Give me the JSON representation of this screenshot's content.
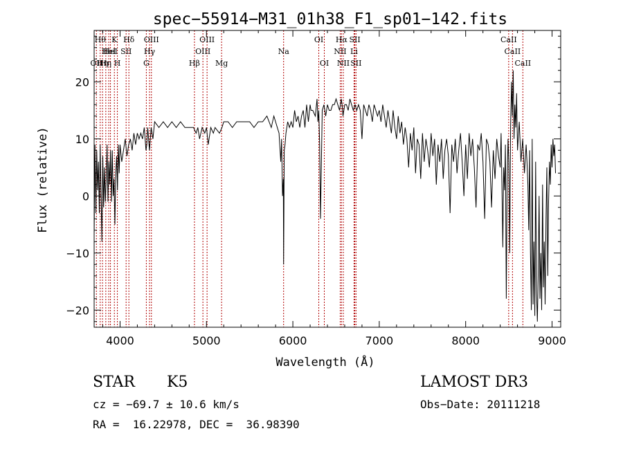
{
  "chart_data": {
    "type": "line",
    "title": "spec−55914−M31_01h38_F1_sp01−142.fits",
    "xlabel": "Wavelength (Å)",
    "ylabel": "Flux (relative)",
    "xlim": [
      3700,
      9100
    ],
    "ylim": [
      -23,
      29
    ],
    "xticks": [
      {
        "v": 4000,
        "label": "4000"
      },
      {
        "v": 5000,
        "label": "5000"
      },
      {
        "v": 6000,
        "label": "6000"
      },
      {
        "v": 7000,
        "label": "7000"
      },
      {
        "v": 8000,
        "label": "8000"
      },
      {
        "v": 9000,
        "label": "9000"
      }
    ],
    "yticks": [
      {
        "v": 20,
        "label": "20"
      },
      {
        "v": 10,
        "label": "10"
      },
      {
        "v": 0,
        "label": "0"
      },
      {
        "v": -10,
        "label": "−10"
      },
      {
        "v": -20,
        "label": "−20"
      }
    ],
    "line_color": "#000000",
    "marker_color": "#b00000",
    "lines": [
      {
        "wave": 3726,
        "label": "OII",
        "row": 2
      },
      {
        "wave": 3770,
        "label": "Hθ",
        "row": 0
      },
      {
        "wave": 3797,
        "label": "Hη",
        "row": 2
      },
      {
        "wave": 3835,
        "label": "Hη",
        "row": 2
      },
      {
        "wave": 3869,
        "label": "HeI",
        "row": 1
      },
      {
        "wave": 3889,
        "label": "HeI",
        "row": 1
      },
      {
        "wave": 3934,
        "label": "K",
        "row": 0
      },
      {
        "wave": 3969,
        "label": "H",
        "row": 2
      },
      {
        "wave": 4070,
        "label": "SII",
        "row": 1
      },
      {
        "wave": 4102,
        "label": "Hδ",
        "row": 0
      },
      {
        "wave": 4304,
        "label": "G",
        "row": 2
      },
      {
        "wave": 4341,
        "label": "Hγ",
        "row": 1
      },
      {
        "wave": 4363,
        "label": "OIII",
        "row": 0
      },
      {
        "wave": 4861,
        "label": "Hβ",
        "row": 2
      },
      {
        "wave": 4959,
        "label": "OIII",
        "row": 1
      },
      {
        "wave": 5007,
        "label": "OIII",
        "row": 0
      },
      {
        "wave": 5175,
        "label": "Mg",
        "row": 2
      },
      {
        "wave": 5893,
        "label": "Na",
        "row": 1
      },
      {
        "wave": 6300,
        "label": "OI",
        "row": 0
      },
      {
        "wave": 6364,
        "label": "OI",
        "row": 2
      },
      {
        "wave": 6548,
        "label": "NII",
        "row": 1
      },
      {
        "wave": 6563,
        "label": "Hα",
        "row": 0
      },
      {
        "wave": 6584,
        "label": "NII",
        "row": 2
      },
      {
        "wave": 6708,
        "label": "Li",
        "row": 1
      },
      {
        "wave": 6717,
        "label": "SII",
        "row": 0
      },
      {
        "wave": 6731,
        "label": "SII",
        "row": 2
      },
      {
        "wave": 8498,
        "label": "CaII",
        "row": 0
      },
      {
        "wave": 8542,
        "label": "CaII",
        "row": 1
      },
      {
        "wave": 8662,
        "label": "CaII",
        "row": 2
      }
    ],
    "series": [
      {
        "name": "spectrum",
        "x": [
          3700,
          3710,
          3720,
          3730,
          3740,
          3750,
          3760,
          3770,
          3780,
          3790,
          3800,
          3810,
          3820,
          3830,
          3840,
          3850,
          3860,
          3870,
          3880,
          3890,
          3900,
          3910,
          3920,
          3930,
          3940,
          3950,
          3960,
          3970,
          3980,
          3990,
          4000,
          4020,
          4040,
          4060,
          4080,
          4100,
          4120,
          4140,
          4160,
          4180,
          4200,
          4220,
          4240,
          4260,
          4280,
          4300,
          4310,
          4320,
          4340,
          4360,
          4380,
          4400,
          4450,
          4500,
          4550,
          4600,
          4650,
          4700,
          4750,
          4800,
          4850,
          4880,
          4900,
          4920,
          4950,
          4980,
          5000,
          5020,
          5050,
          5080,
          5100,
          5150,
          5180,
          5200,
          5250,
          5300,
          5350,
          5400,
          5450,
          5500,
          5550,
          5600,
          5650,
          5700,
          5750,
          5780,
          5800,
          5820,
          5840,
          5860,
          5870,
          5880,
          5890,
          5893,
          5896,
          5900,
          5910,
          5920,
          5940,
          5960,
          5980,
          6000,
          6020,
          6040,
          6060,
          6080,
          6100,
          6120,
          6140,
          6160,
          6180,
          6200,
          6210,
          6230,
          6260,
          6280,
          6290,
          6300,
          6310,
          6320,
          6340,
          6360,
          6380,
          6400,
          6420,
          6440,
          6460,
          6480,
          6500,
          6520,
          6540,
          6560,
          6570,
          6580,
          6600,
          6620,
          6640,
          6660,
          6680,
          6700,
          6720,
          6740,
          6760,
          6780,
          6800,
          6820,
          6840,
          6860,
          6880,
          6900,
          6920,
          6940,
          6960,
          6980,
          7000,
          7020,
          7040,
          7060,
          7080,
          7100,
          7120,
          7140,
          7160,
          7180,
          7200,
          7220,
          7240,
          7260,
          7280,
          7300,
          7320,
          7340,
          7360,
          7380,
          7400,
          7420,
          7440,
          7460,
          7480,
          7500,
          7520,
          7540,
          7560,
          7580,
          7600,
          7620,
          7640,
          7660,
          7680,
          7700,
          7720,
          7740,
          7760,
          7780,
          7800,
          7820,
          7840,
          7860,
          7880,
          7900,
          7920,
          7940,
          7960,
          7980,
          8000,
          8020,
          8040,
          8060,
          8080,
          8100,
          8120,
          8140,
          8160,
          8180,
          8200,
          8220,
          8240,
          8260,
          8280,
          8300,
          8320,
          8340,
          8360,
          8380,
          8400,
          8410,
          8420,
          8430,
          8440,
          8450,
          8460,
          8470,
          8480,
          8490,
          8500,
          8510,
          8520,
          8530,
          8540,
          8550,
          8560,
          8570,
          8580,
          8590,
          8600,
          8620,
          8640,
          8660,
          8680,
          8700,
          8710,
          8720,
          8730,
          8740,
          8750,
          8760,
          8770,
          8780,
          8790,
          8800,
          8810,
          8820,
          8830,
          8840,
          8850,
          8860,
          8870,
          8880,
          8890,
          8900,
          8910,
          8920,
          8930,
          8940,
          8950,
          8960,
          8970,
          8980,
          8990,
          9000,
          9010,
          9020,
          9030,
          9040
        ],
        "y": [
          -7,
          9,
          -3,
          8,
          1,
          6,
          -3,
          9,
          0,
          -8,
          7,
          -2,
          5,
          -1,
          3,
          9,
          -1,
          6,
          2,
          8,
          -1,
          8,
          0,
          3,
          -5,
          4,
          7,
          1,
          9,
          4,
          9,
          6,
          8,
          10,
          7,
          9,
          10,
          8,
          11,
          9,
          11,
          10,
          11,
          10,
          12,
          8,
          9,
          12,
          8,
          12,
          10,
          13,
          12,
          13,
          12,
          13,
          12,
          13,
          12,
          12,
          12,
          11,
          12,
          10,
          12,
          11,
          12,
          9,
          12,
          11,
          12,
          11,
          12,
          13,
          13,
          12,
          13,
          13,
          13,
          13,
          12,
          13,
          13,
          14,
          12,
          14,
          13,
          12,
          11,
          6,
          10,
          0,
          3,
          -12,
          -4,
          8,
          9,
          11,
          13,
          12,
          13,
          12,
          15,
          13,
          14,
          12,
          14,
          15,
          12,
          16,
          13,
          16,
          15,
          15,
          14,
          17,
          13,
          15,
          9,
          -4,
          15,
          16,
          14,
          16,
          15,
          15,
          16,
          16,
          17,
          16,
          15,
          17,
          16,
          14,
          16,
          16,
          15,
          17,
          16,
          15,
          16,
          15,
          16,
          15,
          10,
          16,
          15,
          14,
          16,
          15,
          13,
          16,
          15,
          14,
          15,
          13,
          16,
          14,
          12,
          15,
          13,
          11,
          15,
          12,
          10,
          14,
          11,
          13,
          9,
          12,
          10,
          5,
          11,
          8,
          12,
          4,
          10,
          9,
          3,
          11,
          6,
          10,
          8,
          5,
          11,
          7,
          10,
          2,
          9,
          6,
          10,
          3,
          8,
          10,
          7,
          -3,
          9,
          6,
          10,
          4,
          8,
          11,
          6,
          0,
          9,
          3,
          11,
          7,
          10,
          5,
          -2,
          9,
          8,
          11,
          6,
          -4,
          10,
          9,
          6,
          -2,
          8,
          3,
          10,
          7,
          5,
          11,
          2,
          -9,
          5,
          1,
          9,
          -18,
          2,
          10,
          6,
          -10,
          12,
          20,
          14,
          22,
          10,
          16,
          12,
          18,
          8,
          13,
          6,
          10,
          4,
          9,
          6,
          2,
          -6,
          8,
          -10,
          -20,
          10,
          -19,
          -8,
          -21,
          6,
          -17,
          -22,
          -14,
          0,
          -18,
          -10,
          -20,
          2,
          -16,
          -8,
          -19,
          -4,
          5,
          -14,
          -1,
          6,
          2,
          9,
          5,
          10,
          7,
          9,
          4
        ]
      }
    ]
  },
  "info": {
    "class": "STAR",
    "subclass": "K5",
    "survey": "LAMOST DR3",
    "cz": "cz = −69.7 ± 10.6 km/s",
    "obs_date": "Obs−Date: 20111218",
    "radec": "RA =  16.22978, DEC =  36.98390"
  }
}
